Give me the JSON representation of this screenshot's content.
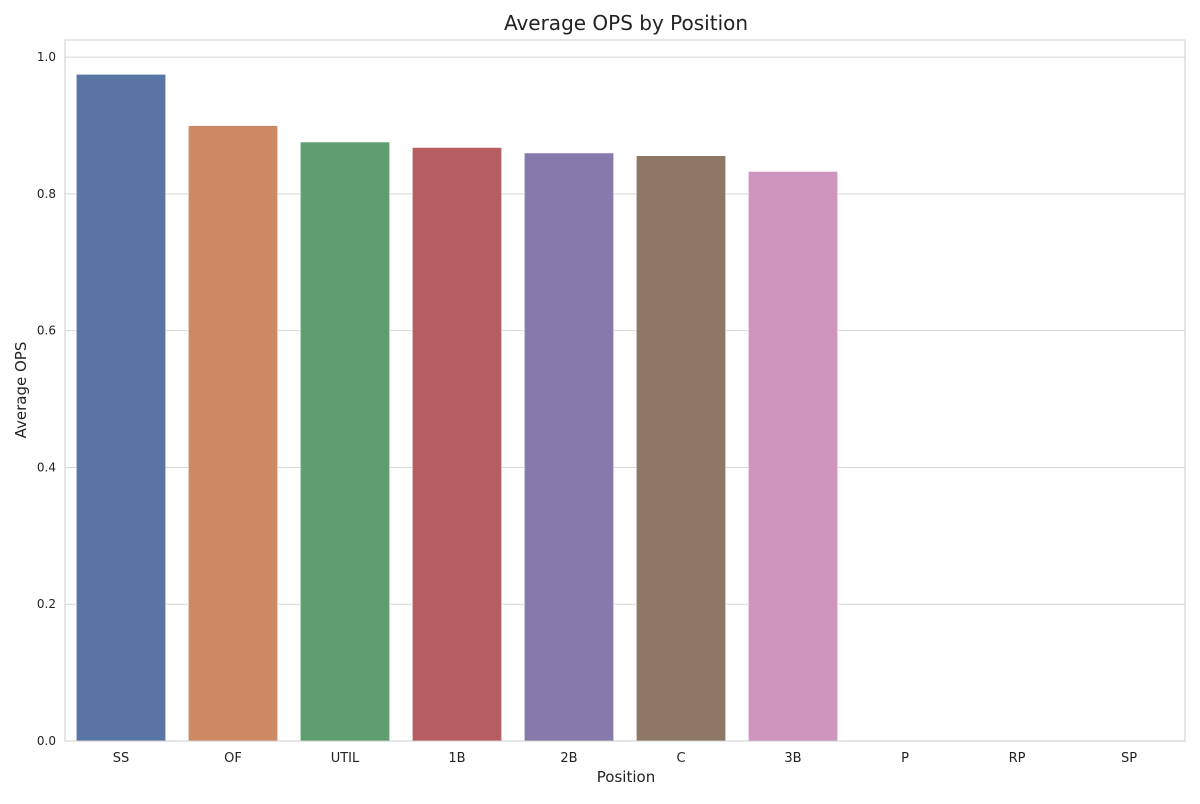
{
  "chart_data": {
    "type": "bar",
    "title": "Average OPS by Position",
    "xlabel": "Position",
    "ylabel": "Average OPS",
    "categories": [
      "SS",
      "OF",
      "UTIL",
      "1B",
      "2B",
      "C",
      "3B",
      "P",
      "RP",
      "SP"
    ],
    "values": [
      0.975,
      0.9,
      0.876,
      0.868,
      0.86,
      0.856,
      0.833,
      0.0,
      0.0,
      0.0
    ],
    "colors": [
      "#5875a4",
      "#cc8963",
      "#5f9e6e",
      "#b55d60",
      "#857aab",
      "#8d7866",
      "#d095bf",
      "#8c8c8c",
      "#c1b37f",
      "#6dafc1"
    ],
    "ylim": [
      0,
      1.025
    ],
    "yticks": [
      "0.0",
      "0.2",
      "0.4",
      "0.6",
      "0.8",
      "1.0"
    ],
    "grid": true,
    "legend": "none"
  }
}
